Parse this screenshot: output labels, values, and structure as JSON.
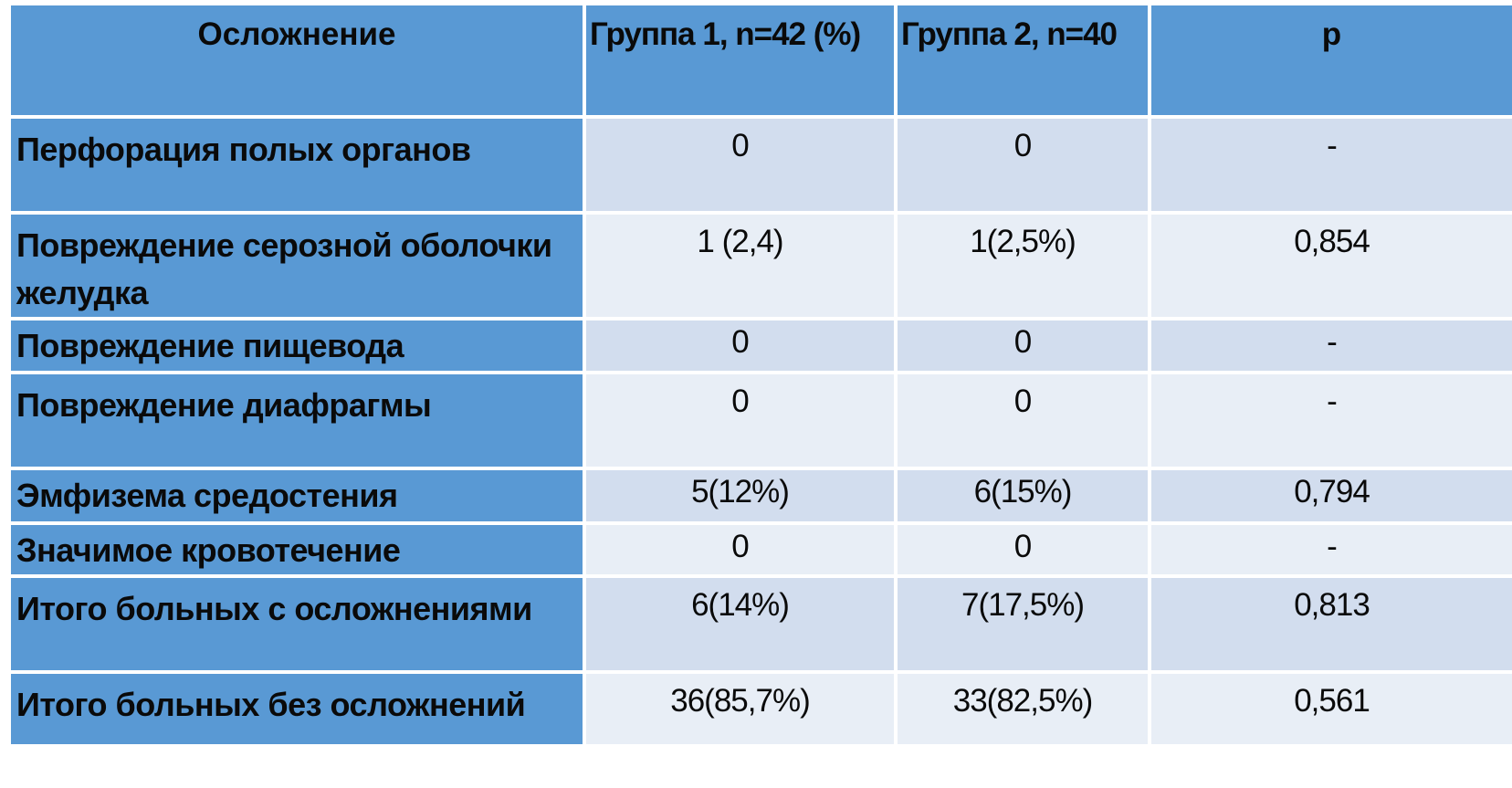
{
  "table": {
    "title_semantic": "Осложнения по группам",
    "headers": {
      "complication": "Осложнение",
      "group1": "Группа 1, n=42 (%)",
      "group2": "Группа 2, n=40",
      "p": "p"
    },
    "rows": [
      {
        "label": "Перфорация полых органов",
        "group1": "0",
        "group2": "0",
        "p": "-"
      },
      {
        "label": "Повреждение серозной оболочки желудка",
        "group1": "1 (2,4)",
        "group2": "1(2,5%)",
        "p": "0,854"
      },
      {
        "label": "Повреждение пищевода",
        "group1": "0",
        "group2": "0",
        "p": "-"
      },
      {
        "label": "Повреждение диафрагмы",
        "group1": "0",
        "group2": "0",
        "p": "-"
      },
      {
        "label": "Эмфизема средостения",
        "group1": "5(12%)",
        "group2": "6(15%)",
        "p": "0,794"
      },
      {
        "label": "Значимое кровотечение",
        "group1": "0",
        "group2": "0",
        "p": "-"
      },
      {
        "label": "Итого больных с осложнениями",
        "group1": "6(14%)",
        "group2": "7(17,5%)",
        "p": "0,813"
      },
      {
        "label": "Итого больных без осложнений",
        "group1": "36(85,7%)",
        "group2": "33(82,5%)",
        "p": "0,561"
      }
    ],
    "colors": {
      "header_bg": "#5999D4",
      "label_column_bg": "#5999D4",
      "band_dark": "#D2DDEE",
      "band_light": "#E8EEF6",
      "separator": "#FFFFFF",
      "text": "#0A0A0A"
    }
  }
}
